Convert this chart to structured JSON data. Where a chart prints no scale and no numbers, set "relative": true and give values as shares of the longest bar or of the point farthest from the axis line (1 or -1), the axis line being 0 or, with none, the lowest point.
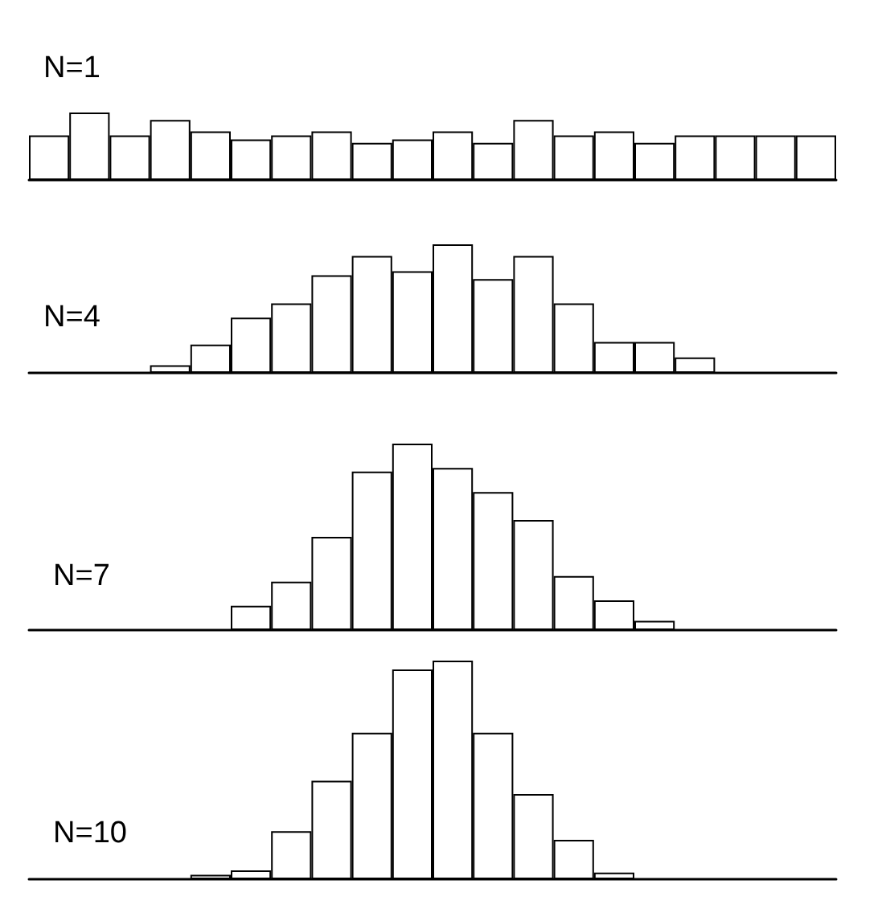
{
  "chart_data": [
    {
      "type": "bar",
      "title": "N=1",
      "categories": [
        null,
        null,
        null,
        null,
        null,
        null,
        null,
        null,
        null,
        null,
        null,
        null,
        null,
        null,
        null,
        null,
        null,
        null,
        null,
        null
      ],
      "values": [
        0.66,
        1,
        0.66,
        0.89,
        0.72,
        0.6,
        0.66,
        0.72,
        0.55,
        0.6,
        0.72,
        0.55,
        0.89,
        0.66,
        0.72,
        0.55,
        0.66,
        0.66,
        0.66,
        0.66
      ],
      "color": "#ffffff",
      "relative": true
    },
    {
      "type": "bar",
      "title": "N=4",
      "categories": [
        null,
        null,
        null,
        null,
        null,
        null,
        null,
        null,
        null,
        null,
        null,
        null,
        null,
        null,
        null,
        null,
        null,
        null,
        null,
        null
      ],
      "values": [
        null,
        null,
        null,
        0.06,
        0.22,
        0.43,
        0.54,
        0.76,
        0.91,
        0.79,
        1,
        0.73,
        0.91,
        0.54,
        0.24,
        0.24,
        0.12,
        null,
        null,
        null
      ],
      "color": "#ffffff",
      "relative": true
    },
    {
      "type": "bar",
      "title": "N=7",
      "categories": [
        null,
        null,
        null,
        null,
        null,
        null,
        null,
        null,
        null,
        null,
        null,
        null,
        null,
        null,
        null,
        null,
        null,
        null,
        null,
        null
      ],
      "values": [
        null,
        null,
        null,
        null,
        null,
        0.13,
        0.26,
        0.5,
        0.85,
        1,
        0.87,
        0.74,
        0.59,
        0.29,
        0.16,
        0.05,
        null,
        null,
        null,
        null
      ],
      "color": "#ffffff",
      "relative": true
    },
    {
      "type": "bar",
      "title": "N=10",
      "categories": [
        null,
        null,
        null,
        null,
        null,
        null,
        null,
        null,
        null,
        null,
        null,
        null,
        null,
        null,
        null,
        null,
        null,
        null,
        null,
        null
      ],
      "values": [
        null,
        null,
        null,
        null,
        0.02,
        0.04,
        0.22,
        0.45,
        0.67,
        0.96,
        1,
        0.67,
        0.39,
        0.18,
        0.03,
        null,
        null,
        null,
        null,
        null
      ],
      "color": "#ffffff",
      "relative": true
    }
  ]
}
